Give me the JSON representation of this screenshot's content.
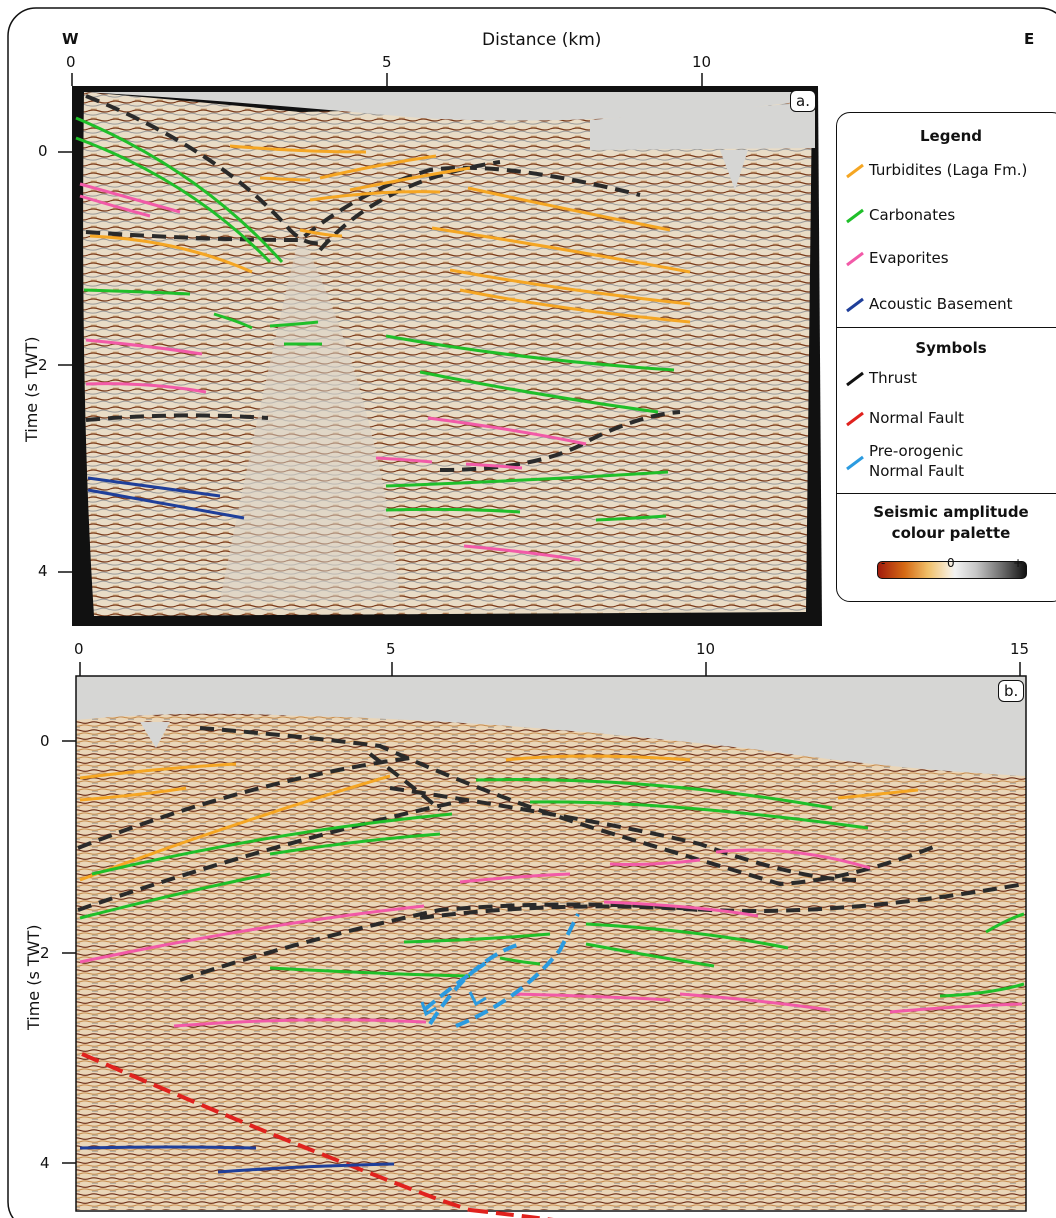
{
  "direction_labels": {
    "west": "W",
    "east": "E"
  },
  "x_axis_title": "Distance (km)",
  "top_x_ticks": [
    "0",
    "5",
    "10"
  ],
  "bottom_x_ticks": [
    "0",
    "5",
    "10",
    "15"
  ],
  "panels": [
    {
      "tag": "a.",
      "y_label": "Time (s TWT)",
      "y_ticks": [
        "0",
        "2",
        "4"
      ]
    },
    {
      "tag": "b.",
      "y_label": "Time (s TWT)",
      "y_ticks": [
        "0",
        "2",
        "4"
      ]
    }
  ],
  "legend": {
    "title": "Legend",
    "units": [
      {
        "label": "Turbidites (Laga Fm.)",
        "color": "#f5a623"
      },
      {
        "label": "Carbonates",
        "color": "#1fbf2a"
      },
      {
        "label": "Evaporites",
        "color": "#f25aa8"
      },
      {
        "label": "Acoustic Basement",
        "color": "#1f3f9a"
      }
    ],
    "symbols_title": "Symbols",
    "symbols": [
      {
        "label": "Thrust",
        "color": "#111111"
      },
      {
        "label": "Normal Fault",
        "color": "#e0221e"
      },
      {
        "label": "Pre-orogenic",
        "label2": "Normal Fault",
        "color": "#2b9be0"
      }
    ],
    "palette_title_1": "Seismic amplitude",
    "palette_title_2": "colour palette",
    "palette_ticks": [
      "-",
      "0",
      "+"
    ]
  }
}
